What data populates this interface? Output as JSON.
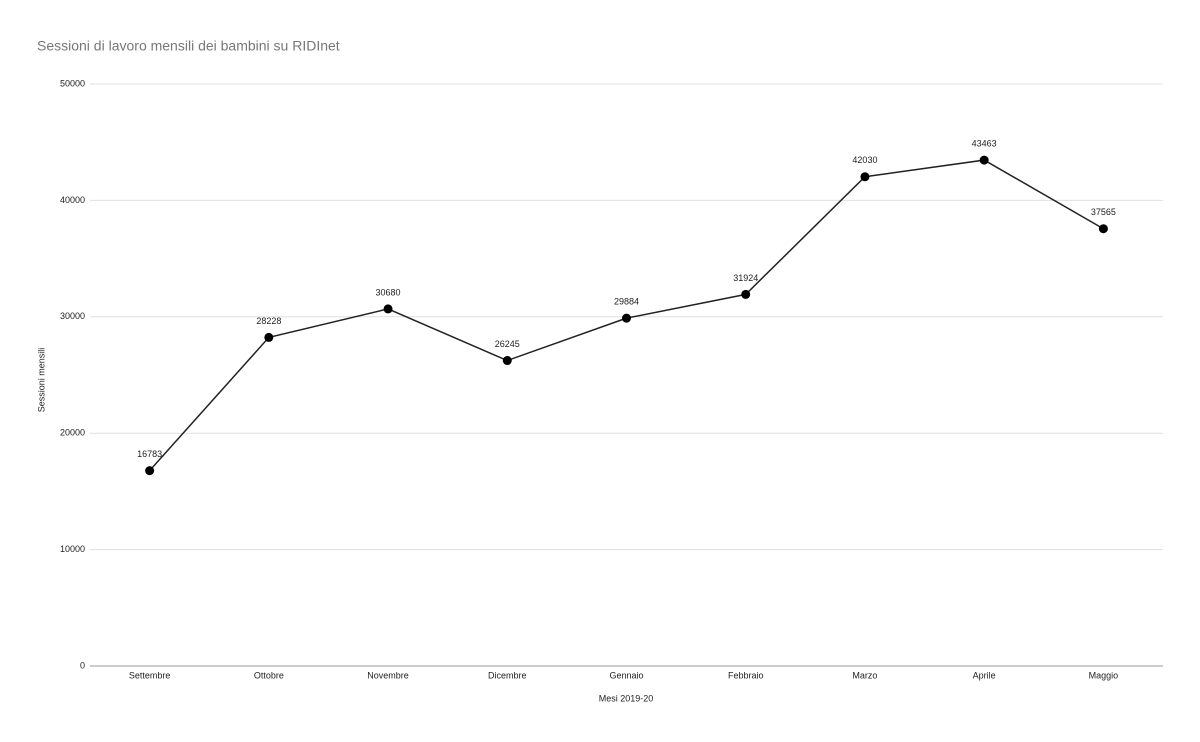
{
  "chart_data": {
    "type": "line",
    "title": "Sessioni di lavoro mensili dei bambini su RIDInet",
    "x_label": "Mesi 2019-20",
    "y_label": "Sessioni mensili",
    "categories": [
      "Settembre",
      "Ottobre",
      "Novembre",
      "Dicembre",
      "Gennaio",
      "Febbraio",
      "Marzo",
      "Aprile",
      "Maggio"
    ],
    "values": [
      16783,
      28228,
      30680,
      26245,
      29884,
      31924,
      42030,
      43463,
      37565
    ],
    "color": "#222222",
    "ylim": [
      0,
      50000
    ],
    "yticks": [
      0,
      10000,
      20000,
      30000,
      40000,
      50000
    ],
    "grid": true
  }
}
